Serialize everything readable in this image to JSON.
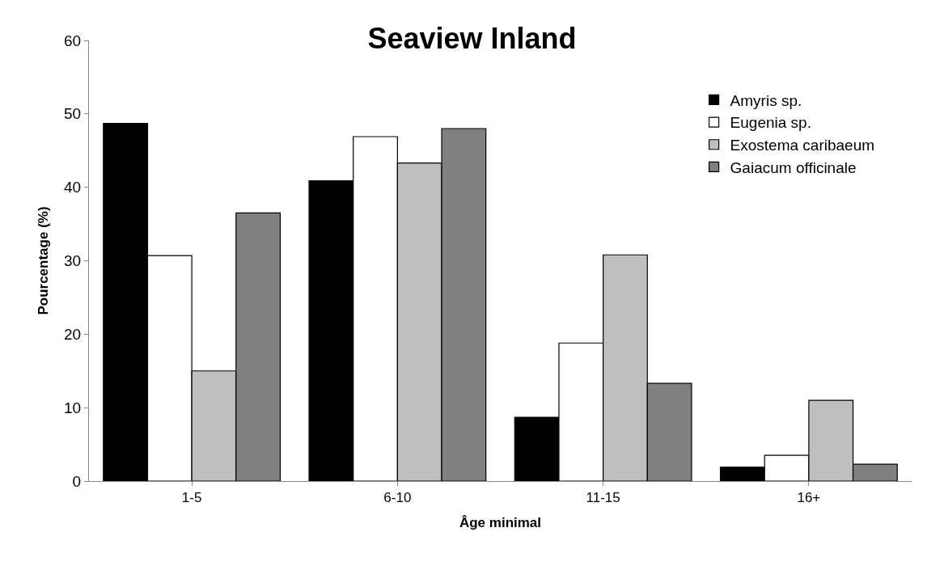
{
  "chart_data": {
    "type": "bar",
    "title": "Seaview Inland",
    "xlabel": "Âge minimal",
    "ylabel": "Pourcentage (%)",
    "categories": [
      "1-5",
      "6-10",
      "11-15",
      "16+"
    ],
    "series": [
      {
        "name": "Amyris sp.",
        "color": "#000000",
        "values": [
          48.7,
          40.9,
          8.7,
          1.9
        ]
      },
      {
        "name": "Eugenia sp.",
        "color": "#ffffff",
        "values": [
          30.7,
          46.9,
          18.8,
          3.5
        ]
      },
      {
        "name": "Exostema caribaeum",
        "color": "#bfbfbf",
        "values": [
          15.0,
          43.3,
          30.8,
          11.0
        ]
      },
      {
        "name": "Gaiacum officinale",
        "color": "#808080",
        "values": [
          36.5,
          48.0,
          13.3,
          2.3
        ]
      }
    ],
    "ylim": [
      0,
      60
    ],
    "yticks": [
      0,
      10,
      20,
      30,
      40,
      50,
      60
    ],
    "legend": "top right"
  }
}
